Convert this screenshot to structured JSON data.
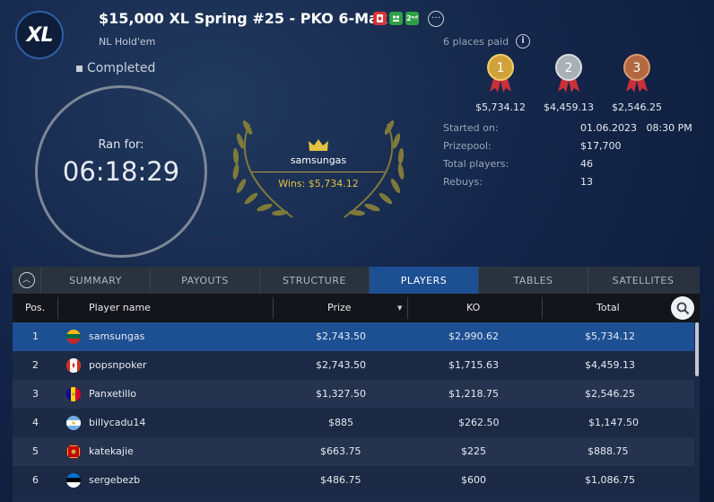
{
  "header": {
    "logo_text": "XL",
    "title": "$15,000 XL Spring #25 - PKO 6-Max",
    "badge_icons": [
      "bounty-icon",
      "six-max-icon",
      "second-chance-icon"
    ],
    "badge_2nd_text": "2ⁿᵈ",
    "more_label": "···",
    "subtitle": "NL Hold'em",
    "status": "Completed"
  },
  "clock": {
    "label": "Ran for:",
    "value": "06:18:29"
  },
  "winner": {
    "name": "samsungas",
    "wins": "Wins: $5,734.12"
  },
  "payouts": {
    "places_paid": "6 places paid",
    "info_label": "i",
    "medals": [
      {
        "rank": "1",
        "amount": "$5,734.12",
        "color": "#d2a23a"
      },
      {
        "rank": "2",
        "amount": "$4,459.13",
        "color": "#a9b0b8"
      },
      {
        "rank": "3",
        "amount": "$2,546.25",
        "color": "#b3683f"
      }
    ]
  },
  "stats": [
    {
      "label": "Started on:",
      "value": "01.06.2023   08:30 PM"
    },
    {
      "label": "Prizepool:",
      "value": "$17,700"
    },
    {
      "label": "Total players:",
      "value": "46"
    },
    {
      "label": "Rebuys:",
      "value": "13"
    }
  ],
  "tabs": [
    {
      "label": "SUMMARY",
      "active": false
    },
    {
      "label": "PAYOUTS",
      "active": false
    },
    {
      "label": "STRUCTURE",
      "active": false
    },
    {
      "label": "PLAYERS",
      "active": true
    },
    {
      "label": "TABLES",
      "active": false
    },
    {
      "label": "SATELLITES",
      "active": false
    }
  ],
  "table": {
    "columns": {
      "pos": "Pos.",
      "name": "Player name",
      "prize": "Prize",
      "ko": "KO",
      "total": "Total"
    },
    "rows": [
      {
        "pos": "1",
        "name": "samsungas",
        "prize": "$2,743.50",
        "ko": "$2,990.62",
        "total": "$5,734.12",
        "flag": "lithuania-flag-icon"
      },
      {
        "pos": "2",
        "name": "popsnpoker",
        "prize": "$2,743.50",
        "ko": "$1,715.63",
        "total": "$4,459.13",
        "flag": "canada-flag-icon"
      },
      {
        "pos": "3",
        "name": "Panxetillo",
        "prize": "$1,327.50",
        "ko": "$1,218.75",
        "total": "$2,546.25",
        "flag": "andorra-flag-icon"
      },
      {
        "pos": "4",
        "name": "billycadu14",
        "prize": "$885",
        "ko": "$262.50",
        "total": "$1,147.50",
        "flag": "argentina-flag-icon"
      },
      {
        "pos": "5",
        "name": "katekajie",
        "prize": "$663.75",
        "ko": "$225",
        "total": "$888.75",
        "flag": "montenegro-flag-icon"
      },
      {
        "pos": "6",
        "name": "sergebezb",
        "prize": "$486.75",
        "ko": "$600",
        "total": "$1,086.75",
        "flag": "estonia-flag-icon"
      }
    ]
  }
}
